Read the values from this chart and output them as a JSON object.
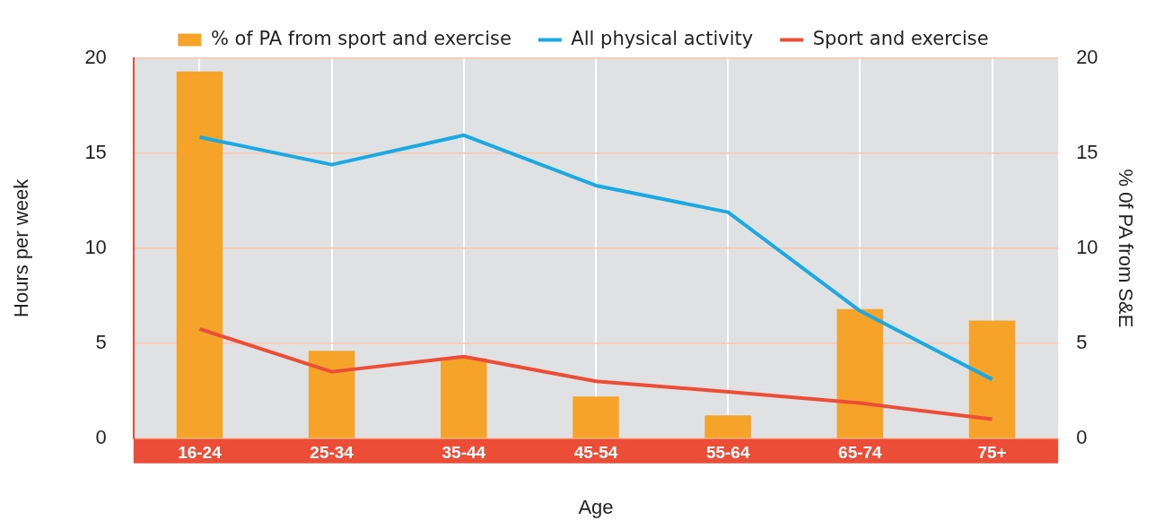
{
  "chart_data": {
    "type": "bar",
    "xlabel": "Age",
    "ylabel": "Hours per week",
    "y2label": "% 0f PA from S&E",
    "categories": [
      "16-24",
      "25-34",
      "35-44",
      "45-54",
      "55-64",
      "65-74",
      "75+"
    ],
    "series": [
      {
        "name": "% of PA from sport and exercise",
        "axis": "y2",
        "color": "#f6a32a",
        "values": [
          19.3,
          4.6,
          4.2,
          2.2,
          1.2,
          6.8,
          6.2
        ]
      },
      {
        "name": "All physical activity",
        "type": "line",
        "color": "#1aa9e3",
        "values": [
          15.85,
          14.4,
          15.95,
          13.3,
          11.9,
          6.7,
          3.1
        ]
      },
      {
        "name": "Sport and exercise",
        "type": "line",
        "color": "#ec4d37",
        "values": [
          5.75,
          3.5,
          4.3,
          3.0,
          2.45,
          1.85,
          1.0
        ]
      }
    ],
    "ylim": [
      0,
      20
    ],
    "yticks": [
      0,
      5,
      10,
      15,
      20
    ],
    "y2lim": [
      0,
      20
    ],
    "y2ticks": [
      0,
      5,
      10,
      15,
      20
    ],
    "grid": true,
    "legend": "top",
    "marker": "none",
    "line_style": "solid"
  }
}
